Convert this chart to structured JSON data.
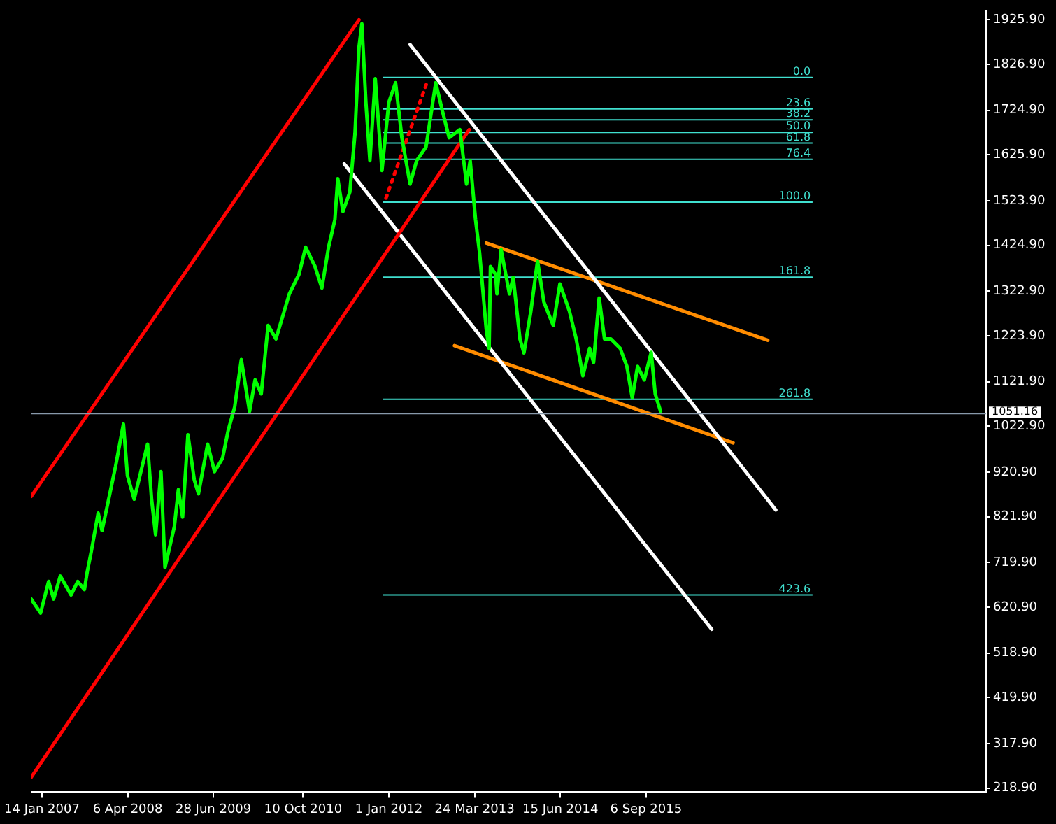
{
  "chart_data": {
    "type": "line",
    "xlim": [
      "2006-11-19",
      "2020-07-18"
    ],
    "ylim": [
      210,
      1947
    ],
    "xticks": [
      {
        "value": "2007-01-14",
        "label": "14 Jan 2007"
      },
      {
        "value": "2008-04-06",
        "label": "6 Apr 2008"
      },
      {
        "value": "2009-06-28",
        "label": "28 Jun 2009"
      },
      {
        "value": "2010-10-10",
        "label": "10 Oct 2010"
      },
      {
        "value": "2012-01-01",
        "label": "1 Jan 2012"
      },
      {
        "value": "2013-03-24",
        "label": "24 Mar 2013"
      },
      {
        "value": "2014-06-15",
        "label": "15 Jun 2014"
      },
      {
        "value": "2015-09-06",
        "label": "6 Sep 2015"
      }
    ],
    "yticks": [
      {
        "value": 1925.9,
        "label": "1925.90"
      },
      {
        "value": 1826.9,
        "label": "1826.90"
      },
      {
        "value": 1724.9,
        "label": "1724.90"
      },
      {
        "value": 1625.9,
        "label": "1625.90"
      },
      {
        "value": 1523.9,
        "label": "1523.90"
      },
      {
        "value": 1424.9,
        "label": "1424.90"
      },
      {
        "value": 1322.9,
        "label": "1322.90"
      },
      {
        "value": 1223.9,
        "label": "1223.90"
      },
      {
        "value": 1121.9,
        "label": "1121.90"
      },
      {
        "value": 1022.9,
        "label": "1022.90"
      },
      {
        "value": 920.9,
        "label": "920.90"
      },
      {
        "value": 821.9,
        "label": "821.90"
      },
      {
        "value": 719.9,
        "label": "719.90"
      },
      {
        "value": 620.9,
        "label": "620.90"
      },
      {
        "value": 518.9,
        "label": "518.90"
      },
      {
        "value": 419.9,
        "label": "419.90"
      },
      {
        "value": 317.9,
        "label": "317.90"
      },
      {
        "value": 218.9,
        "label": "218.90"
      }
    ],
    "grid": false,
    "legend": false,
    "marker": "none",
    "line_style": "solid",
    "ref_lines": [
      {
        "axis": "y",
        "value": 1051.16,
        "label": "1051.16",
        "color": "#8899aa"
      }
    ],
    "series": [
      {
        "color": "#00ff00",
        "x": [
          "2006-11-19",
          "2007-01-07",
          "2007-02-18",
          "2007-03-16",
          "2007-04-20",
          "2007-06-15",
          "2007-07-20",
          "2007-08-24",
          "2007-09-08",
          "2007-09-29",
          "2007-11-04",
          "2007-11-24",
          "2007-12-29",
          "2008-02-03",
          "2008-03-15",
          "2008-04-05",
          "2008-05-10",
          "2008-06-14",
          "2008-07-19",
          "2008-08-09",
          "2008-08-30",
          "2008-09-27",
          "2008-10-18",
          "2008-12-06",
          "2008-12-27",
          "2009-01-18",
          "2009-02-15",
          "2009-03-20",
          "2009-04-11",
          "2009-05-29",
          "2009-07-04",
          "2009-08-15",
          "2009-09-13",
          "2009-10-17",
          "2009-11-21",
          "2010-01-03",
          "2010-02-01",
          "2010-03-05",
          "2010-04-10",
          "2010-05-21",
          "2010-07-30",
          "2010-09-18",
          "2010-10-23",
          "2010-12-11",
          "2011-01-16",
          "2011-02-20",
          "2011-03-25",
          "2011-04-09",
          "2011-05-06",
          "2011-06-11",
          "2011-07-08",
          "2011-07-29",
          "2011-08-13",
          "2011-09-03",
          "2011-09-24",
          "2011-10-22",
          "2011-11-26",
          "2012-01-01",
          "2012-02-05",
          "2012-03-09",
          "2012-04-21",
          "2012-05-25",
          "2012-07-13",
          "2012-09-02",
          "2012-10-06",
          "2012-11-11",
          "2013-01-06",
          "2013-02-10",
          "2013-03-01",
          "2013-03-29",
          "2013-04-19",
          "2013-05-24",
          "2013-06-08",
          "2013-06-15",
          "2013-07-12",
          "2013-07-19",
          "2013-08-10",
          "2013-09-22",
          "2013-10-12",
          "2013-11-16",
          "2013-12-07",
          "2014-01-12",
          "2014-02-16",
          "2014-03-21",
          "2014-05-09",
          "2014-06-13",
          "2014-08-02",
          "2014-09-06",
          "2014-10-11",
          "2014-11-15",
          "2014-12-06",
          "2015-01-04",
          "2015-02-01",
          "2015-03-06",
          "2015-04-24",
          "2015-05-29",
          "2015-06-26",
          "2015-07-24",
          "2015-08-28",
          "2015-10-03",
          "2015-10-24",
          "2015-11-21"
        ],
        "values": [
          639,
          608,
          678,
          639,
          690,
          648,
          678,
          660,
          700,
          745,
          830,
          791,
          861,
          934,
          1028,
          913,
          861,
          922,
          983,
          861,
          782,
          922,
          709,
          800,
          882,
          821,
          1004,
          904,
          873,
          983,
          922,
          952,
          1013,
          1065,
          1171,
          1056,
          1126,
          1095,
          1247,
          1217,
          1317,
          1360,
          1421,
          1378,
          1330,
          1421,
          1482,
          1573,
          1500,
          1543,
          1673,
          1865,
          1917,
          1743,
          1613,
          1795,
          1591,
          1743,
          1786,
          1664,
          1561,
          1613,
          1643,
          1786,
          1725,
          1664,
          1682,
          1561,
          1613,
          1482,
          1409,
          1238,
          1196,
          1378,
          1360,
          1317,
          1415,
          1317,
          1354,
          1217,
          1186,
          1278,
          1390,
          1299,
          1247,
          1339,
          1278,
          1217,
          1135,
          1196,
          1165,
          1308,
          1217,
          1217,
          1196,
          1156,
          1086,
          1156,
          1126,
          1187,
          1095,
          1056
        ]
      },
      {
        "color": "#ff0000",
        "x": [
          "2006-11-19",
          "2011-07-29"
        ],
        "values": [
          867,
          1926
        ]
      },
      {
        "color": "#ff0000",
        "x": [
          "2006-11-19",
          "2013-02-24"
        ],
        "values": [
          243,
          1682
        ]
      },
      {
        "color": "#ff0000",
        "line_style": "dotted",
        "x": [
          "2011-12-17",
          "2012-07-20"
        ],
        "values": [
          1530,
          1789
        ]
      },
      {
        "color": "#ffffff",
        "x": [
          "2012-04-21",
          "2017-07-15"
        ],
        "values": [
          1871,
          837
        ]
      },
      {
        "color": "#ffffff",
        "x": [
          "2011-05-13",
          "2016-08-14"
        ],
        "values": [
          1606,
          572
        ]
      },
      {
        "color": "#ff8c00",
        "x": [
          "2013-05-24",
          "2017-06-03"
        ],
        "values": [
          1430,
          1214
        ]
      },
      {
        "color": "#ff8c00",
        "x": [
          "2012-12-09",
          "2016-12-04"
        ],
        "values": [
          1202,
          986
        ]
      },
      {
        "name": "0.0",
        "color": "#40e0d0",
        "x": [
          "2011-12-03",
          "2018-01-21"
        ],
        "values": [
          1798,
          1798
        ]
      },
      {
        "name": "23.6",
        "color": "#40e0d0",
        "x": [
          "2011-12-03",
          "2018-01-21"
        ],
        "values": [
          1728,
          1728
        ]
      },
      {
        "name": "38.2",
        "color": "#40e0d0",
        "x": [
          "2011-12-03",
          "2018-01-21"
        ],
        "values": [
          1704,
          1704
        ]
      },
      {
        "name": "50.0",
        "color": "#40e0d0",
        "x": [
          "2011-12-03",
          "2018-01-21"
        ],
        "values": [
          1676,
          1676
        ]
      },
      {
        "name": "61.8",
        "color": "#40e0d0",
        "x": [
          "2011-12-03",
          "2018-01-21"
        ],
        "values": [
          1652,
          1652
        ]
      },
      {
        "name": "76.4",
        "color": "#40e0d0",
        "x": [
          "2011-12-03",
          "2018-01-21"
        ],
        "values": [
          1616,
          1616
        ]
      },
      {
        "name": "100.0",
        "color": "#40e0d0",
        "x": [
          "2011-12-03",
          "2018-01-21"
        ],
        "values": [
          1521,
          1521
        ]
      },
      {
        "name": "161.8",
        "color": "#40e0d0",
        "x": [
          "2011-12-03",
          "2018-01-21"
        ],
        "values": [
          1354,
          1354
        ]
      },
      {
        "name": "261.8",
        "color": "#40e0d0",
        "x": [
          "2011-12-03",
          "2018-01-21"
        ],
        "values": [
          1083,
          1083
        ]
      },
      {
        "name": "423.6",
        "color": "#40e0d0",
        "x": [
          "2011-12-03",
          "2018-01-21"
        ],
        "values": [
          648,
          648
        ]
      }
    ]
  }
}
